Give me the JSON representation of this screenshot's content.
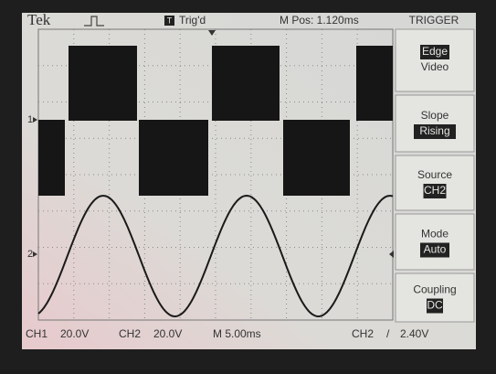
{
  "header": {
    "brand": "Tek",
    "trigger_icon": "T",
    "trigger_status": "Trig'd",
    "position": "M Pos: 1.120ms",
    "menu_title": "TRIGGER"
  },
  "markers": {
    "ch1": "1",
    "ch2": "2"
  },
  "menu": [
    {
      "label": "Edge",
      "value": "Video"
    },
    {
      "label": "Slope",
      "value": "Rising"
    },
    {
      "label": "Source",
      "value": "CH2"
    },
    {
      "label": "Mode",
      "value": "Auto"
    },
    {
      "label": "Coupling",
      "value": "DC"
    }
  ],
  "footer": {
    "ch1": "CH1",
    "ch1_scale": "20.0V",
    "ch2": "CH2",
    "ch2_scale": "20.0V",
    "timebase": "M 5.00ms",
    "trigger_source": "CH2",
    "trigger_slope": "/",
    "trigger_level": "2.40V"
  }
}
